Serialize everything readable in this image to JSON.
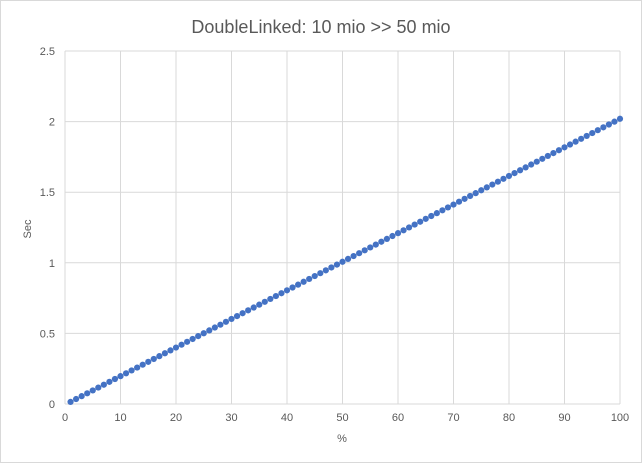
{
  "chart_data": {
    "type": "scatter",
    "title": "DoubleLinked: 10 mio >> 50 mio",
    "xlabel": "%",
    "ylabel": "Sec",
    "xlim": [
      0,
      100
    ],
    "ylim": [
      0,
      2.5
    ],
    "xticks": [
      "0",
      "10",
      "20",
      "30",
      "40",
      "50",
      "60",
      "70",
      "80",
      "90",
      "100"
    ],
    "yticks": [
      "0",
      "0.5",
      "1",
      "1.5",
      "2",
      "2.5"
    ],
    "grid": true,
    "legend": "none",
    "marker_color": "#4472c4",
    "series": [
      {
        "x_start": 1,
        "x_end": 100,
        "x_step": 1,
        "y_start": 0.015,
        "y_end": 2.02,
        "note_values": "linear: y ≈ 0.0202·x (one point per integer x from 1 to 100)"
      }
    ]
  }
}
